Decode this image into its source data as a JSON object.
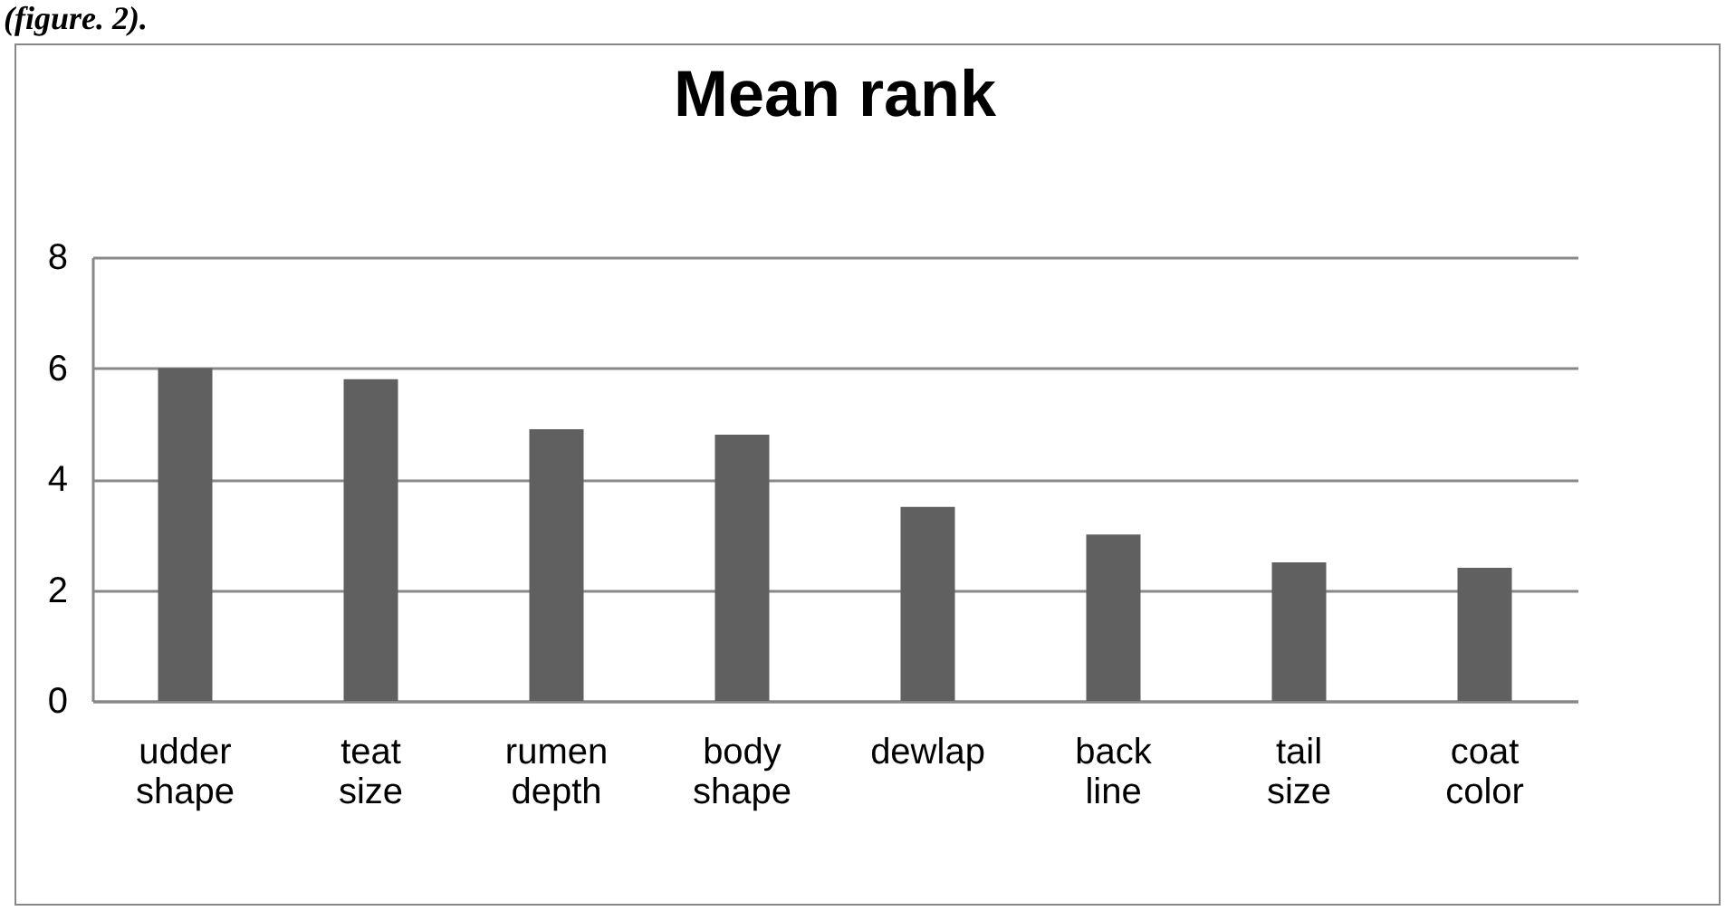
{
  "chart_data": {
    "type": "bar",
    "title": "Mean rank",
    "categories": [
      "udder shape",
      "teat size",
      "rumen depth",
      "body shape",
      "dewlap",
      "back line",
      "tail size",
      "coat color"
    ],
    "values": [
      6.0,
      5.8,
      4.9,
      4.8,
      3.5,
      3.0,
      2.5,
      2.4
    ],
    "color": "#606060",
    "ylim": [
      0,
      8
    ],
    "yticks": [
      0,
      2,
      4,
      6,
      8
    ],
    "grid": "y",
    "annotations": [
      "(figure. 2)."
    ]
  }
}
